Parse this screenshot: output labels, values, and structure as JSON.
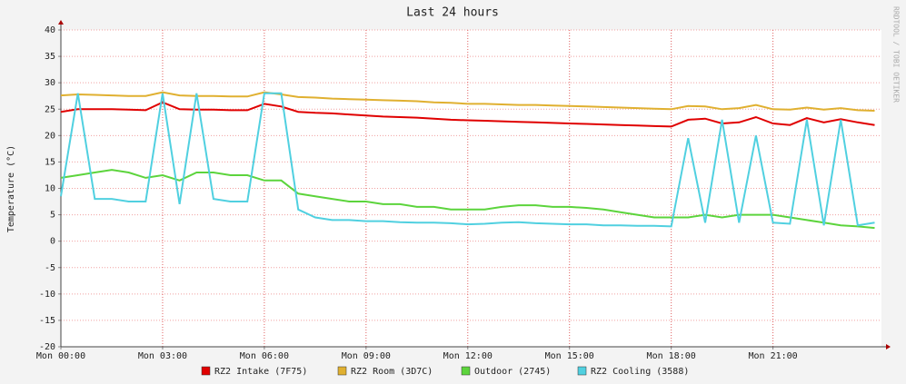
{
  "chart_data": {
    "type": "line",
    "title": "Last 24 hours",
    "y_label": "Temperature (°C)",
    "side_text": "RRDTOOL / TOBI OETIKER",
    "x": [
      0,
      0.5,
      1,
      1.5,
      2,
      2.5,
      3,
      3.5,
      4,
      4.5,
      5,
      5.5,
      6,
      6.5,
      7,
      7.5,
      8,
      8.5,
      9,
      9.5,
      10,
      10.5,
      11,
      11.5,
      12,
      12.5,
      13,
      13.5,
      14,
      14.5,
      15,
      15.5,
      16,
      16.5,
      17,
      17.5,
      18,
      18.5,
      19,
      19.5,
      20,
      20.5,
      21,
      21.5,
      22,
      22.5,
      23,
      23.5,
      24
    ],
    "xlim": [
      0,
      24.2
    ],
    "xticks": [
      {
        "value": 0,
        "label": "Mon 00:00"
      },
      {
        "value": 3,
        "label": "Mon 03:00"
      },
      {
        "value": 6,
        "label": "Mon 06:00"
      },
      {
        "value": 9,
        "label": "Mon 09:00"
      },
      {
        "value": 12,
        "label": "Mon 12:00"
      },
      {
        "value": 15,
        "label": "Mon 15:00"
      },
      {
        "value": 18,
        "label": "Mon 18:00"
      },
      {
        "value": 21,
        "label": "Mon 21:00"
      }
    ],
    "ylim": [
      -20,
      40
    ],
    "yticks": [
      -20,
      -15,
      -10,
      -5,
      0,
      5,
      10,
      15,
      20,
      25,
      30,
      35,
      40
    ],
    "grid": true,
    "series": [
      {
        "name": "RZ2 Intake (7F75)",
        "color": "#e00000",
        "values": [
          24.5,
          25,
          25,
          25,
          24.9,
          24.8,
          26.3,
          25,
          24.9,
          24.9,
          24.8,
          24.8,
          26,
          25.5,
          24.5,
          24.3,
          24.2,
          24,
          23.8,
          23.6,
          23.5,
          23.4,
          23.2,
          23,
          22.9,
          22.8,
          22.7,
          22.6,
          22.5,
          22.4,
          22.3,
          22.2,
          22.1,
          22,
          21.9,
          21.8,
          21.7,
          23,
          23.2,
          22.3,
          22.5,
          23.5,
          22.3,
          22,
          23.3,
          22.5,
          23.1,
          22.5,
          22
        ]
      },
      {
        "name": "RZ2 Room (3D7C)",
        "color": "#e0b030",
        "values": [
          27.6,
          27.8,
          27.7,
          27.6,
          27.5,
          27.5,
          28.2,
          27.6,
          27.5,
          27.5,
          27.4,
          27.4,
          28.2,
          27.8,
          27.3,
          27.2,
          27,
          26.9,
          26.8,
          26.7,
          26.6,
          26.5,
          26.3,
          26.2,
          26,
          26,
          25.9,
          25.8,
          25.8,
          25.7,
          25.6,
          25.5,
          25.4,
          25.3,
          25.2,
          25.1,
          25,
          25.6,
          25.5,
          25,
          25.2,
          25.8,
          25,
          24.9,
          25.3,
          24.9,
          25.2,
          24.8,
          24.7
        ]
      },
      {
        "name": "Outdoor (2745)",
        "color": "#5cd43c",
        "values": [
          12,
          12.5,
          13,
          13.5,
          13,
          12,
          12.5,
          11.5,
          13,
          13,
          12.5,
          12.5,
          11.5,
          11.5,
          9,
          8.5,
          8,
          7.5,
          7.5,
          7,
          7,
          6.5,
          6.5,
          6,
          6,
          6,
          6.5,
          6.8,
          6.8,
          6.5,
          6.5,
          6.3,
          6,
          5.5,
          5,
          4.5,
          4.5,
          4.5,
          5,
          4.5,
          5,
          5,
          5,
          4.5,
          4,
          3.5,
          3,
          2.8,
          2.5
        ]
      },
      {
        "name": "RZ2 Cooling (3588)",
        "color": "#50d0e0",
        "values": [
          8.5,
          28,
          8,
          8,
          7.5,
          7.5,
          28,
          7,
          28,
          8,
          7.5,
          7.5,
          28,
          28,
          6,
          4.5,
          4,
          4,
          3.8,
          3.8,
          3.6,
          3.5,
          3.5,
          3.4,
          3.2,
          3.3,
          3.5,
          3.6,
          3.4,
          3.3,
          3.2,
          3.2,
          3,
          3,
          2.9,
          2.9,
          2.8,
          19.5,
          3.5,
          23,
          3.5,
          20,
          3.5,
          3.3,
          23,
          3,
          23,
          3,
          3.5
        ]
      }
    ]
  }
}
